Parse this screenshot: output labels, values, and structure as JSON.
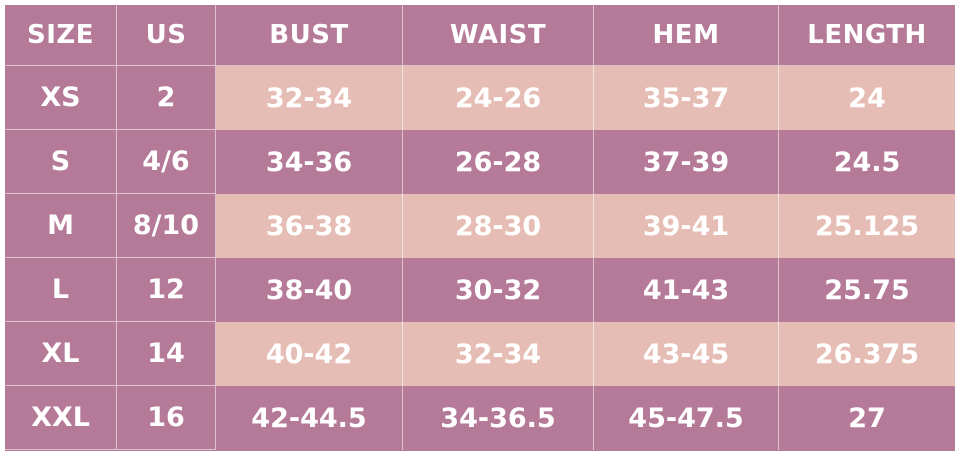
{
  "colors": {
    "header": "#b47a98",
    "row_dark": "#b47a98",
    "row_light": "#e6bdb4",
    "text": "#ffffff"
  },
  "headers": [
    "SIZE",
    "US",
    "BUST",
    "WAIST",
    "HEM",
    "LENGTH"
  ],
  "rows": [
    [
      "XS",
      "2",
      "32-34",
      "24-26",
      "35-37",
      "24"
    ],
    [
      "S",
      "4/6",
      "34-36",
      "26-28",
      "37-39",
      "24.5"
    ],
    [
      "M",
      "8/10",
      "36-38",
      "28-30",
      "39-41",
      "25.125"
    ],
    [
      "L",
      "12",
      "38-40",
      "30-32",
      "41-43",
      "25.75"
    ],
    [
      "XL",
      "14",
      "40-42",
      "32-34",
      "43-45",
      "26.375"
    ],
    [
      "XXL",
      "16",
      "42-44.5",
      "34-36.5",
      "45-47.5",
      "27"
    ]
  ]
}
